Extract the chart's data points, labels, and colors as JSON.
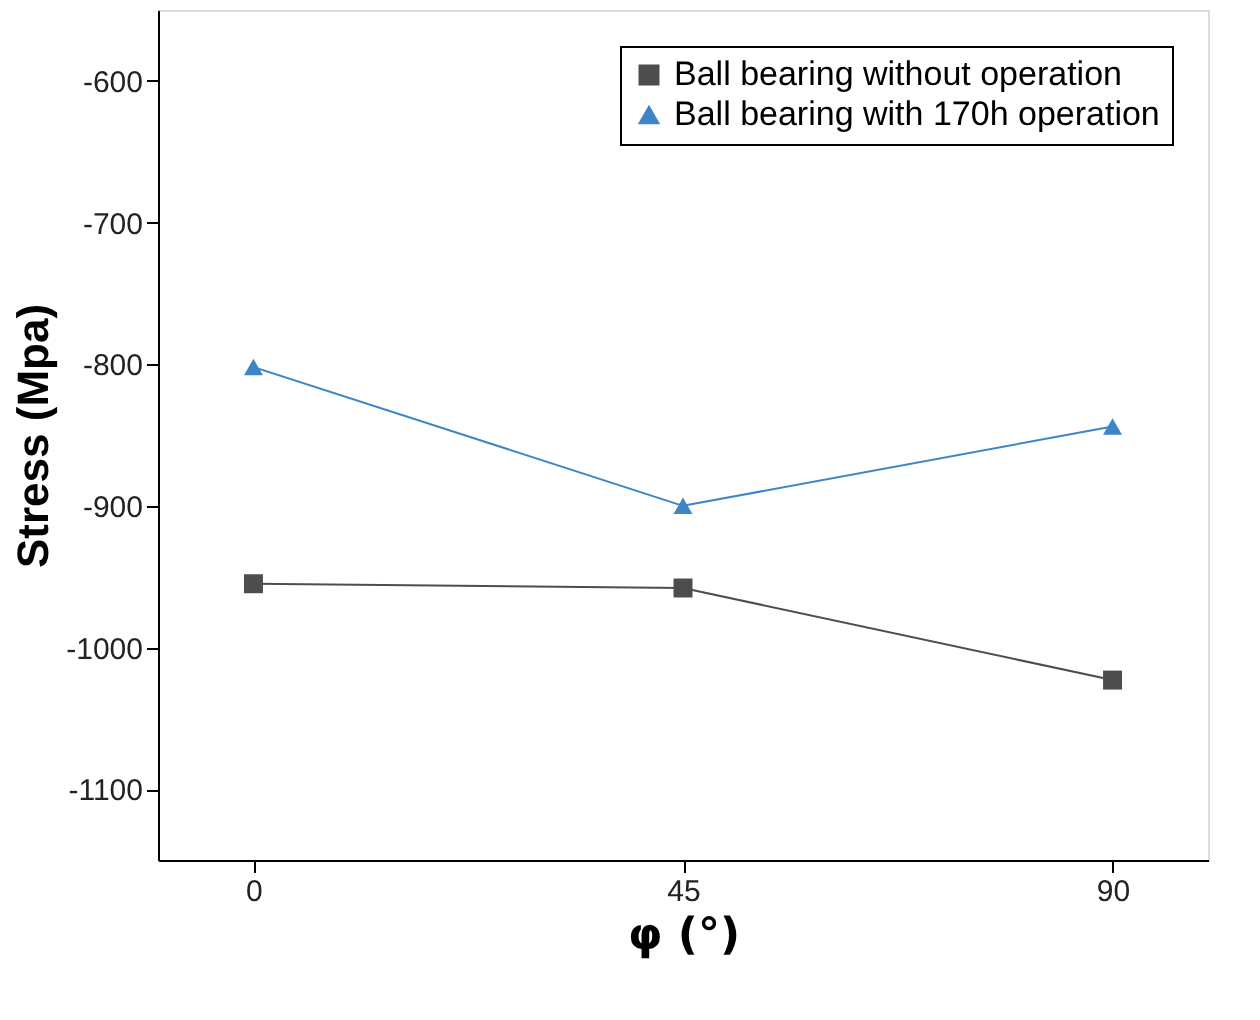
{
  "chart_data": {
    "type": "line",
    "xlabel": "φ (°)",
    "ylabel": "Stress (Mpa)",
    "x": [
      0,
      45,
      90
    ],
    "series": [
      {
        "name": "Ball bearing without operation",
        "color": "#4d4d4d",
        "marker": "square",
        "values": [
          -955,
          -958,
          -1023
        ]
      },
      {
        "name": "Ball bearing with 170h operation",
        "color": "#3d85c6",
        "marker": "triangle",
        "values": [
          -802,
          -900,
          -844
        ]
      }
    ],
    "xlim": [
      -10,
      100
    ],
    "xticks": [
      0,
      45,
      90
    ],
    "ylim": [
      -1150,
      -550
    ],
    "yticks": [
      -1100,
      -1000,
      -900,
      -800,
      -700,
      -600
    ],
    "grid": false,
    "legend": "top right",
    "line_style": "solid"
  }
}
